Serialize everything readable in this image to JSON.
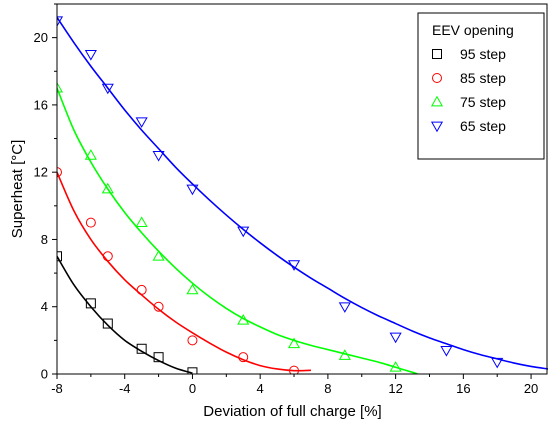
{
  "chart_data": {
    "type": "scatter",
    "xlabel": "Deviation of full charge [%]",
    "ylabel": "Superheat [°C]",
    "xlim": [
      -8,
      21
    ],
    "ylim": [
      0,
      22
    ],
    "xticks": [
      -8,
      -4,
      0,
      4,
      8,
      12,
      16,
      20
    ],
    "yticks": [
      0,
      4,
      8,
      12,
      16,
      20
    ],
    "xtick_labels": [
      "-8",
      "-4",
      "0",
      "4",
      "8",
      "12",
      "16",
      "20"
    ],
    "ytick_labels": [
      "0",
      "4",
      "8",
      "12",
      "16",
      "20"
    ],
    "grid": false,
    "legend": {
      "title": "EEV opening",
      "placement": "top-right"
    },
    "series": [
      {
        "name": "95 step",
        "marker": "square",
        "color": "#000000",
        "points": [
          [
            -8,
            7.0
          ],
          [
            -6,
            4.2
          ],
          [
            -5,
            3.0
          ],
          [
            -3,
            1.5
          ],
          [
            -2,
            1.0
          ],
          [
            0,
            0.1
          ]
        ],
        "fit": [
          [
            -8,
            7.0
          ],
          [
            -7,
            5.3
          ],
          [
            -6,
            4.0
          ],
          [
            -5,
            2.9
          ],
          [
            -4,
            2.0
          ],
          [
            -3,
            1.35
          ],
          [
            -2,
            0.8
          ],
          [
            -1,
            0.35
          ],
          [
            0,
            0.05
          ]
        ]
      },
      {
        "name": "85 step",
        "marker": "circle",
        "color": "#ff0000",
        "points": [
          [
            -8,
            12.0
          ],
          [
            -6,
            9.0
          ],
          [
            -5,
            7.0
          ],
          [
            -3,
            5.0
          ],
          [
            -2,
            4.0
          ],
          [
            0,
            2.0
          ],
          [
            3,
            1.0
          ],
          [
            6,
            0.2
          ]
        ],
        "fit": [
          [
            -8,
            12.0
          ],
          [
            -7,
            9.7
          ],
          [
            -6,
            8.0
          ],
          [
            -5,
            6.7
          ],
          [
            -4,
            5.6
          ],
          [
            -3,
            4.7
          ],
          [
            -2,
            3.85
          ],
          [
            -1,
            3.1
          ],
          [
            0,
            2.45
          ],
          [
            1,
            1.85
          ],
          [
            2,
            1.3
          ],
          [
            3,
            0.85
          ],
          [
            4,
            0.5
          ],
          [
            5,
            0.3
          ],
          [
            6,
            0.2
          ],
          [
            7,
            0.22
          ]
        ]
      },
      {
        "name": "75 step",
        "marker": "triangle-up",
        "color": "#00ff00",
        "points": [
          [
            -8,
            17.0
          ],
          [
            -6,
            13.0
          ],
          [
            -5,
            11.0
          ],
          [
            -3,
            9.0
          ],
          [
            -2,
            7.0
          ],
          [
            0,
            5.0
          ],
          [
            3,
            3.2
          ],
          [
            6,
            1.8
          ],
          [
            9,
            1.1
          ],
          [
            12,
            0.4
          ]
        ],
        "fit": [
          [
            -8,
            17.0
          ],
          [
            -7,
            14.5
          ],
          [
            -6,
            12.6
          ],
          [
            -5,
            11.0
          ],
          [
            -4,
            9.6
          ],
          [
            -3,
            8.4
          ],
          [
            -2,
            7.3
          ],
          [
            -1,
            6.3
          ],
          [
            0,
            5.4
          ],
          [
            1,
            4.6
          ],
          [
            2,
            3.9
          ],
          [
            3,
            3.3
          ],
          [
            4,
            2.8
          ],
          [
            5,
            2.35
          ],
          [
            6,
            2.0
          ],
          [
            7,
            1.7
          ],
          [
            8,
            1.45
          ],
          [
            9,
            1.2
          ],
          [
            10,
            0.95
          ],
          [
            11,
            0.7
          ],
          [
            12,
            0.4
          ],
          [
            13,
            0.1
          ],
          [
            13.3,
            0.0
          ]
        ]
      },
      {
        "name": "65 step",
        "marker": "triangle-down",
        "color": "#0000ff",
        "points": [
          [
            -8,
            21.0
          ],
          [
            -6,
            19.0
          ],
          [
            -5,
            17.0
          ],
          [
            -3,
            15.0
          ],
          [
            -2,
            13.0
          ],
          [
            0,
            11.0
          ],
          [
            3,
            8.5
          ],
          [
            6,
            6.5
          ],
          [
            9,
            4.0
          ],
          [
            12,
            2.2
          ],
          [
            15,
            1.4
          ],
          [
            18,
            0.7
          ]
        ],
        "fit": [
          [
            -8,
            21.2
          ],
          [
            -7,
            19.7
          ],
          [
            -6,
            18.3
          ],
          [
            -5,
            17.0
          ],
          [
            -4,
            15.7
          ],
          [
            -3,
            14.5
          ],
          [
            -2,
            13.4
          ],
          [
            -1,
            12.3
          ],
          [
            0,
            11.3
          ],
          [
            1,
            10.35
          ],
          [
            2,
            9.45
          ],
          [
            3,
            8.6
          ],
          [
            4,
            7.8
          ],
          [
            5,
            7.05
          ],
          [
            6,
            6.35
          ],
          [
            7,
            5.7
          ],
          [
            8,
            5.1
          ],
          [
            9,
            4.5
          ],
          [
            10,
            3.95
          ],
          [
            11,
            3.45
          ],
          [
            12,
            3.0
          ],
          [
            13,
            2.55
          ],
          [
            14,
            2.15
          ],
          [
            15,
            1.8
          ],
          [
            16,
            1.45
          ],
          [
            17,
            1.15
          ],
          [
            18,
            0.9
          ],
          [
            19,
            0.65
          ],
          [
            20,
            0.45
          ],
          [
            21,
            0.3
          ]
        ]
      }
    ]
  }
}
